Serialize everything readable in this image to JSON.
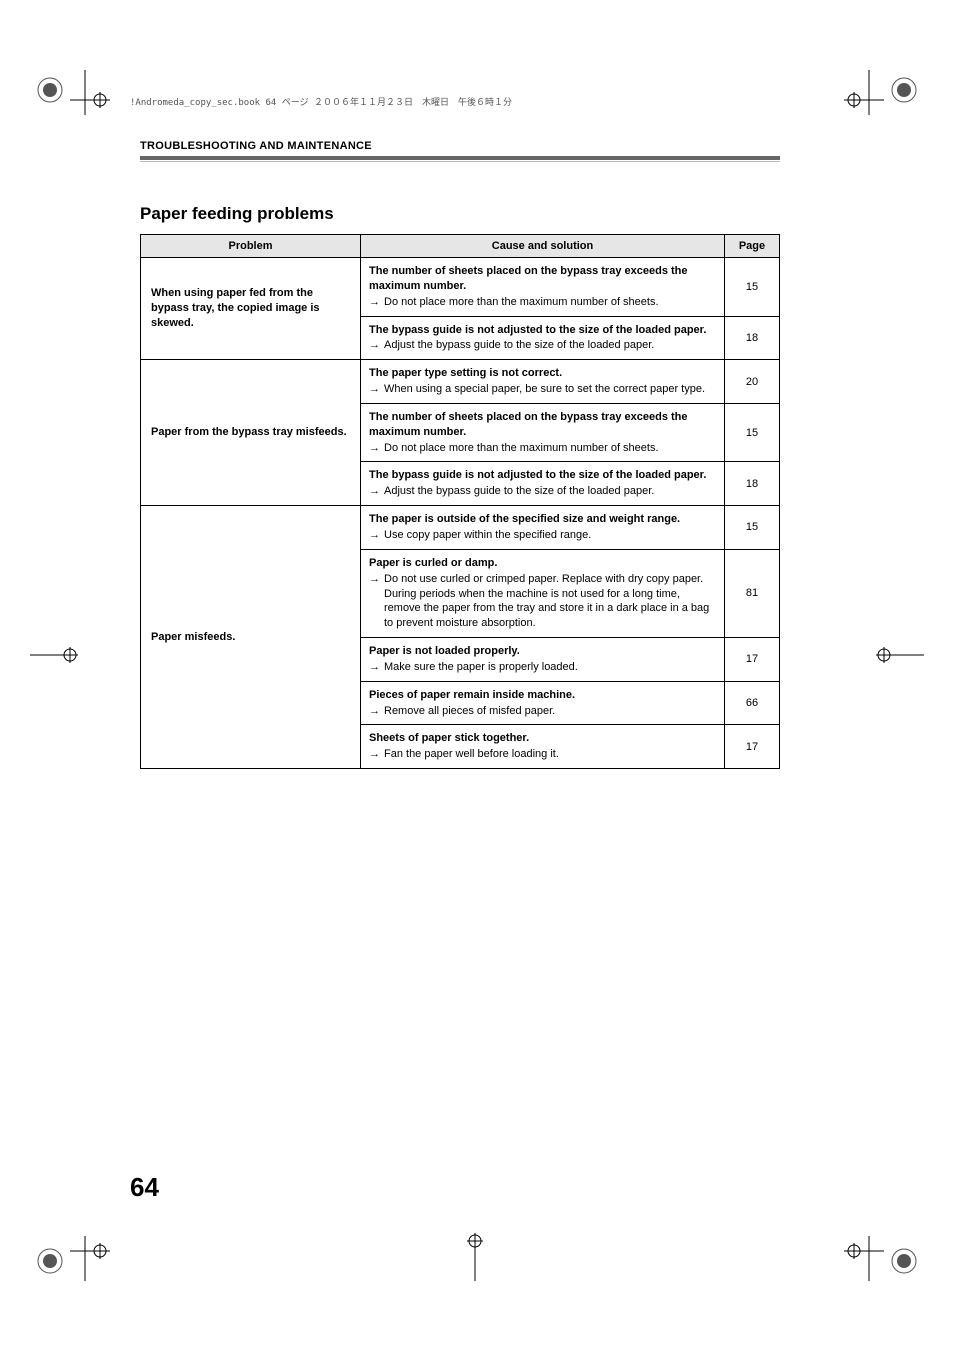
{
  "page_info_line": "!Andromeda_copy_sec.book  64 ページ  ２００６年１１月２３日　木曜日　午後６時１分",
  "running_head": "TROUBLESHOOTING AND MAINTENANCE",
  "section_title": "Paper feeding problems",
  "header": {
    "problem": "Problem",
    "cause": "Cause and solution",
    "page": "Page"
  },
  "arrow": "→",
  "rows": [
    {
      "problem": "When using paper fed from the bypass tray, the copied image is skewed.",
      "causes": [
        {
          "title": "The number of sheets placed on the bypass tray exceeds the maximum number.",
          "solutions": [
            "Do not place more than the maximum number of sheets."
          ],
          "page": "15"
        },
        {
          "title": "The bypass guide is not adjusted to the size of the loaded paper.",
          "solutions": [
            "Adjust the bypass guide to the size of the loaded paper."
          ],
          "page": "18"
        }
      ]
    },
    {
      "problem": "Paper from the bypass tray misfeeds.",
      "causes": [
        {
          "title": "The paper type setting is not correct.",
          "solutions": [
            "When using a special paper, be sure to set the correct paper type."
          ],
          "page": "20"
        },
        {
          "title": "The number of sheets placed on the bypass tray exceeds the maximum number.",
          "solutions": [
            "Do not place more than the maximum number of sheets."
          ],
          "page": "15"
        },
        {
          "title": "The bypass guide is not adjusted to the size of the loaded paper.",
          "solutions": [
            "Adjust the bypass guide to the size of the loaded paper."
          ],
          "page": "18"
        }
      ]
    },
    {
      "problem": "Paper misfeeds.",
      "causes": [
        {
          "title": "The paper is outside of the specified size and weight range.",
          "solutions": [
            "Use copy paper within the specified range."
          ],
          "page": "15"
        },
        {
          "title": "Paper is curled or damp.",
          "solutions": [
            "Do not use curled or crimped paper. Replace with dry copy paper. During periods when the machine is not used for a long time, remove the paper from the tray and store it in a dark place in a bag to prevent moisture absorption."
          ],
          "page": "81"
        },
        {
          "title": "Paper is not loaded properly.",
          "solutions": [
            "Make sure the paper is properly loaded."
          ],
          "page": "17"
        },
        {
          "title": "Pieces of paper remain inside machine.",
          "solutions": [
            "Remove all pieces of misfed paper."
          ],
          "page": "66"
        },
        {
          "title": "Sheets of paper stick together.",
          "solutions": [
            "Fan the paper well before loading it."
          ],
          "page": "17"
        }
      ]
    }
  ],
  "page_number": "64"
}
